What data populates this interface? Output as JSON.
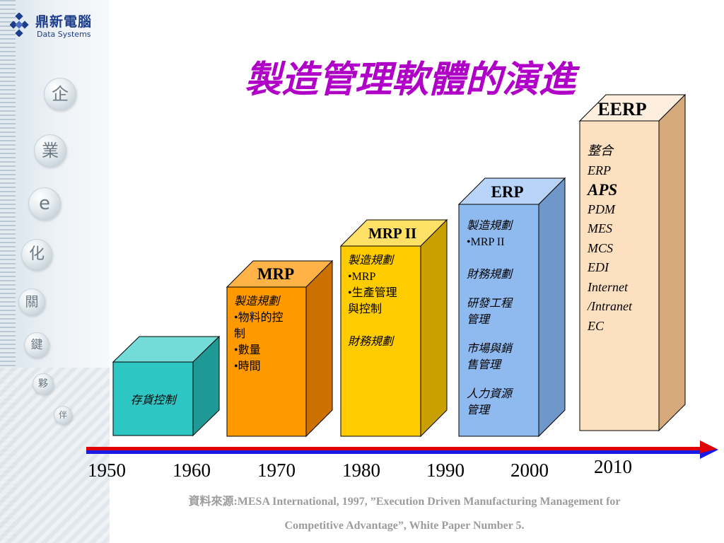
{
  "brand": {
    "name_cn": "鼎新電腦",
    "name_en": "Data Systems"
  },
  "sidebar": {
    "beads": [
      "企",
      "業",
      "e",
      "化",
      "關",
      "鍵",
      "夥",
      "伴"
    ]
  },
  "title": "製造管理軟體的演進",
  "stages": {
    "inventory": {
      "label": "存貨控制"
    },
    "mrp": {
      "header": "MRP",
      "line1": "製造規劃",
      "line2": "•物料的控",
      "line3": "制",
      "line4": "•數量",
      "line5": "•時間"
    },
    "mrp2": {
      "header": "MRP II",
      "line1": "製造規劃",
      "line2": "•MRP",
      "line3": "•生產管理",
      "line4": "與控制",
      "line5": "財務規劃"
    },
    "erp": {
      "header": "ERP",
      "line1": "製造規劃",
      "line2": "•MRP II",
      "line3": "財務規劃",
      "line4": "研發工程",
      "line5": "管理",
      "line6": "市場與銷",
      "line7": "售管理",
      "line8": "人力資源",
      "line9": "管理"
    },
    "eerp": {
      "header": "EERP",
      "items": [
        "整合",
        "ERP",
        "APS",
        "PDM",
        "MES",
        "MCS",
        "EDI",
        "Internet",
        "/Intranet",
        "EC"
      ]
    }
  },
  "timeline": {
    "years": [
      "1950",
      "1960",
      "1970",
      "1980",
      "1990",
      "2000",
      "2010"
    ]
  },
  "colors": {
    "title": "#b000c8",
    "teal": "#2ec6c2",
    "orange": "#ff9900",
    "yellow": "#ffcc00",
    "blue": "#8fbaf0",
    "peach": "#fce0c0",
    "arrow_red": "#e00000",
    "arrow_blue": "#1a1ae6"
  },
  "source": {
    "line1": "資料來源:MESA International, 1997, ”Execution Driven Manufacturing Management for",
    "line2": "Competitive Advantage”, White Paper Number 5."
  }
}
